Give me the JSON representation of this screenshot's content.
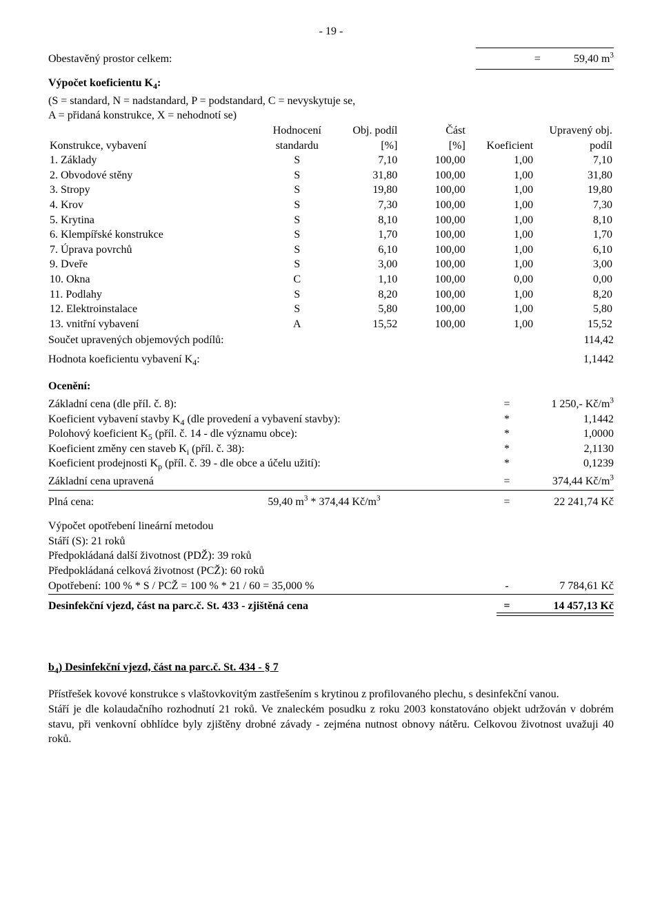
{
  "page_number": "- 19 -",
  "total_prostor": {
    "label": "Obestavěný prostor celkem:",
    "op": "=",
    "value": "59,40 m",
    "exp": "3"
  },
  "vypocet_heading": "Výpočet koeficientu K",
  "vypocet_heading_sub": "4",
  "vypocet_heading_colon": ":",
  "legend": "(S = standard, N = nadstandard, P = podstandard, C = nevyskytuje se,",
  "legend2": "A = přidaná konstrukce, X = nehodnotí se)",
  "table": {
    "header": {
      "c1": "Konstrukce, vybavení",
      "c2a": "Hodnocení",
      "c2b": "standardu",
      "c3a": "Obj. podíl",
      "c3b": "[%]",
      "c4a": "Část",
      "c4b": "[%]",
      "c5": "Koeficient",
      "c6a": "Upravený obj.",
      "c6b": "podíl"
    },
    "rows": [
      {
        "name": "1. Základy",
        "std": "S",
        "podil": "7,10",
        "cast": "100,00",
        "koef": "1,00",
        "upr": "7,10"
      },
      {
        "name": "2. Obvodové stěny",
        "std": "S",
        "podil": "31,80",
        "cast": "100,00",
        "koef": "1,00",
        "upr": "31,80"
      },
      {
        "name": "3. Stropy",
        "std": "S",
        "podil": "19,80",
        "cast": "100,00",
        "koef": "1,00",
        "upr": "19,80"
      },
      {
        "name": "4. Krov",
        "std": "S",
        "podil": "7,30",
        "cast": "100,00",
        "koef": "1,00",
        "upr": "7,30"
      },
      {
        "name": "5. Krytina",
        "std": "S",
        "podil": "8,10",
        "cast": "100,00",
        "koef": "1,00",
        "upr": "8,10"
      },
      {
        "name": "6. Klempířské konstrukce",
        "std": "S",
        "podil": "1,70",
        "cast": "100,00",
        "koef": "1,00",
        "upr": "1,70"
      },
      {
        "name": "7. Úprava povrchů",
        "std": "S",
        "podil": "6,10",
        "cast": "100,00",
        "koef": "1,00",
        "upr": "6,10"
      },
      {
        "name": "9. Dveře",
        "std": "S",
        "podil": "3,00",
        "cast": "100,00",
        "koef": "1,00",
        "upr": "3,00"
      },
      {
        "name": "10. Okna",
        "std": "C",
        "podil": "1,10",
        "cast": "100,00",
        "koef": "0,00",
        "upr": "0,00"
      },
      {
        "name": "11. Podlahy",
        "std": "S",
        "podil": "8,20",
        "cast": "100,00",
        "koef": "1,00",
        "upr": "8,20"
      },
      {
        "name": "12. Elektroinstalace",
        "std": "S",
        "podil": "5,80",
        "cast": "100,00",
        "koef": "1,00",
        "upr": "5,80"
      },
      {
        "name": "13. vnitřní vybavení",
        "std": "A",
        "podil": "15,52",
        "cast": "100,00",
        "koef": "1,00",
        "upr": "15,52"
      }
    ]
  },
  "soucet": {
    "label": "Součet upravených objemových podílů:",
    "val": "114,42"
  },
  "hodnota_k4": {
    "label": "Hodnota koeficientu vybavení K",
    "sub": "4",
    "colon": ":",
    "val": "1,1442"
  },
  "oceneni_heading": "Ocenění:",
  "calc": [
    {
      "label": "Základní cena (dle příl. č. 8):",
      "op": "=",
      "val": "1 250,- Kč/m",
      "exp": "3"
    },
    {
      "label": "Koeficient vybavení stavby K",
      "sub": "4",
      "after": " (dle provedení a vybavení stavby):",
      "op": "*",
      "val": "1,1442"
    },
    {
      "label": "Polohový koeficient K",
      "sub": "5",
      "after": " (příl. č. 14 - dle významu obce):",
      "op": "*",
      "val": "1,0000"
    },
    {
      "label": "Koeficient změny cen staveb K",
      "sub": "i",
      "after": " (příl. č. 38):",
      "op": "*",
      "val": "2,1130"
    },
    {
      "label": "Koeficient prodejnosti K",
      "sub": "p",
      "after": " (příl. č. 39 - dle obce a účelu užití):",
      "op": "*",
      "val": "0,1239"
    }
  ],
  "zakladni_upravena": {
    "label": "Základní cena upravená",
    "op": "=",
    "val": "374,44 Kč/m",
    "exp": "3"
  },
  "plna_cena": {
    "label": "Plná cena:",
    "mid_a": "59,40 m",
    "exp_a": "3",
    "mid_op": " * ",
    "mid_b": "374,44 Kč/m",
    "exp_b": "3",
    "op": "=",
    "val": "22 241,74 Kč"
  },
  "opotrebeni_heading": "Výpočet opotřebení lineární metodou",
  "opotrebeni_lines": [
    "Stáří (S): 21 roků",
    "Předpokládaná další životnost (PDŽ): 39 roků",
    "Předpokládaná celková životnost (PCŽ): 60 roků"
  ],
  "opotrebeni_calc": {
    "label": "Opotřebení: 100 % * S / PCŽ = 100 % * 21 / 60 = 35,000 %",
    "op": "-",
    "val": "7 784,61 Kč"
  },
  "final_row": {
    "label": "Desinfekční vjezd, část na parc.č. St. 433 - zjištěná cena",
    "op": "=",
    "val": "14 457,13 Kč"
  },
  "section_b4": {
    "heading_pref": "b",
    "heading_sub": "4",
    "heading_rest": ") Desinfekční vjezd, část na parc.č. St. 434 - § 7",
    "para1": "Přístřešek kovové konstrukce s vlaštovkovitým zastřešením s krytinou z profilovaného plechu, s desinfekční vanou.",
    "para2": "Stáří je dle kolaudačního rozhodnutí 21 roků. Ve znaleckém posudku z roku 2003 konstatováno objekt udržován v dobrém stavu, při venkovní obhlídce byly zjištěny drobné závady - zejména nutnost obnovy nátěru. Celkovou životnost uvažuji 40 roků."
  }
}
